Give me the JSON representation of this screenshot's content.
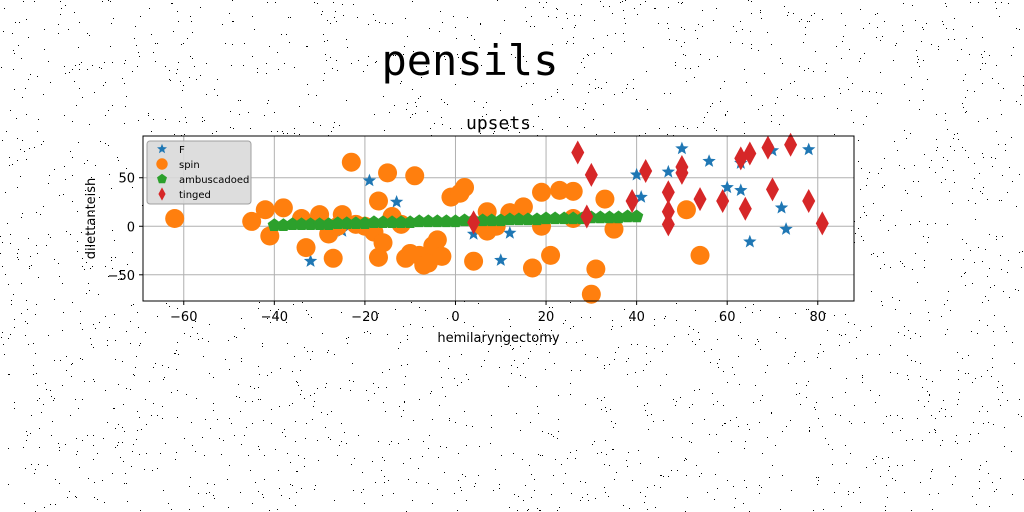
{
  "figure_title": "pensils",
  "chart_data": {
    "type": "scatter",
    "title": "upsets",
    "xlabel": "hemilaryngectomy",
    "ylabel": "dilettanteish",
    "xlim": [
      -69,
      88
    ],
    "ylim": [
      -77,
      93
    ],
    "xticks": [
      -60,
      -40,
      -20,
      0,
      20,
      40,
      60,
      80
    ],
    "yticks": [
      -50,
      0,
      50
    ],
    "grid": true,
    "legend_position": "upper-left",
    "series": [
      {
        "name": "F",
        "marker": "star",
        "color": "#1f77b4",
        "points": [
          [
            -32,
            -36
          ],
          [
            -27,
            -32
          ],
          [
            -25,
            -5
          ],
          [
            -19,
            47
          ],
          [
            -13,
            25
          ],
          [
            4,
            -8
          ],
          [
            10,
            -35
          ],
          [
            12,
            -7
          ],
          [
            40,
            53
          ],
          [
            41,
            30
          ],
          [
            47,
            56
          ],
          [
            50,
            80
          ],
          [
            56,
            67
          ],
          [
            60,
            40
          ],
          [
            63,
            37
          ],
          [
            63,
            65
          ],
          [
            65,
            -16
          ],
          [
            70,
            78
          ],
          [
            72,
            19
          ],
          [
            73,
            -3
          ],
          [
            78,
            79
          ]
        ]
      },
      {
        "name": "spin",
        "marker": "circle",
        "color": "#ff7f0e",
        "points": [
          [
            -62,
            8
          ],
          [
            -45,
            5
          ],
          [
            -42,
            17
          ],
          [
            -41,
            -10
          ],
          [
            -38,
            19
          ],
          [
            -34,
            8
          ],
          [
            -33,
            -22
          ],
          [
            -30,
            12
          ],
          [
            -28,
            -8
          ],
          [
            -27,
            -33
          ],
          [
            -26,
            0
          ],
          [
            -25,
            12
          ],
          [
            -23,
            66
          ],
          [
            -22,
            2
          ],
          [
            -20,
            0
          ],
          [
            -18,
            -6
          ],
          [
            -17,
            26
          ],
          [
            -17,
            -32
          ],
          [
            -16,
            -17
          ],
          [
            -15,
            55
          ],
          [
            -14,
            10
          ],
          [
            -12,
            2
          ],
          [
            -11,
            -33
          ],
          [
            -10,
            -28
          ],
          [
            -9,
            52
          ],
          [
            -8,
            -30
          ],
          [
            -7,
            -40
          ],
          [
            -6,
            -38
          ],
          [
            -5,
            -20
          ],
          [
            -4,
            -14
          ],
          [
            -3,
            -31
          ],
          [
            -1,
            30
          ],
          [
            1,
            34
          ],
          [
            2,
            40
          ],
          [
            4,
            -36
          ],
          [
            6,
            0
          ],
          [
            7,
            15
          ],
          [
            7,
            -5
          ],
          [
            9,
            0
          ],
          [
            12,
            14
          ],
          [
            15,
            20
          ],
          [
            17,
            -43
          ],
          [
            19,
            0
          ],
          [
            19,
            35
          ],
          [
            21,
            -30
          ],
          [
            23,
            37
          ],
          [
            26,
            36
          ],
          [
            26,
            8
          ],
          [
            30,
            -70
          ],
          [
            31,
            -44
          ],
          [
            33,
            28
          ],
          [
            35,
            -3
          ],
          [
            51,
            17
          ],
          [
            54,
            -30
          ]
        ]
      },
      {
        "name": "ambuscadoed",
        "marker": "pentagon",
        "color": "#2ca02c",
        "points": [
          [
            -40,
            1
          ],
          [
            -38,
            1
          ],
          [
            -36,
            2
          ],
          [
            -34,
            2
          ],
          [
            -32,
            2
          ],
          [
            -30,
            2
          ],
          [
            -28,
            2
          ],
          [
            -26,
            3
          ],
          [
            -24,
            3
          ],
          [
            -22,
            3
          ],
          [
            -20,
            3
          ],
          [
            -18,
            4
          ],
          [
            -16,
            4
          ],
          [
            -14,
            4
          ],
          [
            -12,
            4
          ],
          [
            -10,
            4
          ],
          [
            -8,
            5
          ],
          [
            -6,
            5
          ],
          [
            -4,
            5
          ],
          [
            -2,
            5
          ],
          [
            0,
            5
          ],
          [
            2,
            6
          ],
          [
            4,
            6
          ],
          [
            6,
            6
          ],
          [
            8,
            6
          ],
          [
            10,
            6
          ],
          [
            12,
            7
          ],
          [
            14,
            7
          ],
          [
            16,
            7
          ],
          [
            18,
            7
          ],
          [
            20,
            8
          ],
          [
            22,
            8
          ],
          [
            24,
            8
          ],
          [
            26,
            8
          ],
          [
            28,
            8
          ],
          [
            30,
            9
          ],
          [
            32,
            9
          ],
          [
            34,
            9
          ],
          [
            36,
            9
          ],
          [
            38,
            10
          ],
          [
            40,
            10
          ]
        ]
      },
      {
        "name": "tinged",
        "marker": "thin_diamond",
        "color": "#d62728",
        "points": [
          [
            4,
            4
          ],
          [
            27,
            76
          ],
          [
            30,
            53
          ],
          [
            29,
            10
          ],
          [
            39,
            26
          ],
          [
            42,
            57
          ],
          [
            47,
            35
          ],
          [
            47,
            15
          ],
          [
            47,
            2
          ],
          [
            50,
            61
          ],
          [
            50,
            55
          ],
          [
            54,
            28
          ],
          [
            59,
            26
          ],
          [
            63,
            70
          ],
          [
            64,
            18
          ],
          [
            65,
            75
          ],
          [
            69,
            81
          ],
          [
            70,
            38
          ],
          [
            74,
            84
          ],
          [
            78,
            26
          ],
          [
            81,
            3
          ]
        ]
      }
    ]
  }
}
